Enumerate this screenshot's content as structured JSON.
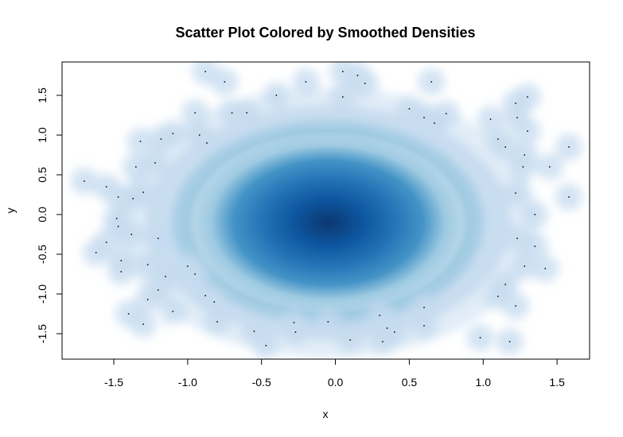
{
  "chart_data": {
    "type": "scatter",
    "title": "Scatter Plot Colored by Smoothed Densities",
    "xlabel": "x",
    "ylabel": "y",
    "xlim": [
      -1.85,
      1.72
    ],
    "ylim": [
      -1.82,
      1.92
    ],
    "x_ticks": [
      -1.5,
      -1.0,
      -0.5,
      0.0,
      0.5,
      1.0,
      1.5
    ],
    "x_tick_labels": [
      "-1.5",
      "-1.0",
      "-0.5",
      "0.0",
      "0.5",
      "1.0",
      "1.5"
    ],
    "y_ticks": [
      -1.5,
      -1.0,
      -0.5,
      0.0,
      0.5,
      1.0,
      1.5
    ],
    "y_tick_labels": [
      "-1.5",
      "-1.0",
      "-0.5",
      "0.0",
      "0.5",
      "1.0",
      "1.5"
    ],
    "color_scale": [
      "#ffffff",
      "#c6dbef",
      "#6baed6",
      "#2171b5",
      "#08306b"
    ],
    "density_center": [
      -0.05,
      -0.1
    ],
    "outlier_points": [
      {
        "x": -0.88,
        "y": 1.8
      },
      {
        "x": -0.75,
        "y": 1.67
      },
      {
        "x": -0.2,
        "y": 1.67
      },
      {
        "x": 0.05,
        "y": 1.8
      },
      {
        "x": 0.15,
        "y": 1.75
      },
      {
        "x": 0.2,
        "y": 1.65
      },
      {
        "x": 0.65,
        "y": 1.67
      },
      {
        "x": -0.4,
        "y": 1.5
      },
      {
        "x": 0.05,
        "y": 1.48
      },
      {
        "x": -0.95,
        "y": 1.28
      },
      {
        "x": -0.7,
        "y": 1.28
      },
      {
        "x": -0.6,
        "y": 1.28
      },
      {
        "x": 0.5,
        "y": 1.33
      },
      {
        "x": 0.6,
        "y": 1.22
      },
      {
        "x": 0.67,
        "y": 1.15
      },
      {
        "x": 0.75,
        "y": 1.27
      },
      {
        "x": 1.22,
        "y": 1.4
      },
      {
        "x": 1.3,
        "y": 1.48
      },
      {
        "x": 1.23,
        "y": 1.22
      },
      {
        "x": 1.05,
        "y": 1.2
      },
      {
        "x": 1.3,
        "y": 1.05
      },
      {
        "x": 1.1,
        "y": 0.95
      },
      {
        "x": 1.15,
        "y": 0.85
      },
      {
        "x": 1.28,
        "y": 0.75
      },
      {
        "x": 1.27,
        "y": 0.6
      },
      {
        "x": 1.45,
        "y": 0.6
      },
      {
        "x": 1.58,
        "y": 0.85
      },
      {
        "x": 1.58,
        "y": 0.22
      },
      {
        "x": 1.35,
        "y": 0.0
      },
      {
        "x": 1.22,
        "y": 0.27
      },
      {
        "x": 1.23,
        "y": -0.3
      },
      {
        "x": 1.35,
        "y": -0.4
      },
      {
        "x": 1.42,
        "y": -0.68
      },
      {
        "x": 1.28,
        "y": -0.65
      },
      {
        "x": 1.15,
        "y": -0.88
      },
      {
        "x": 1.22,
        "y": -1.15
      },
      {
        "x": 1.1,
        "y": -1.03
      },
      {
        "x": 0.6,
        "y": -1.17
      },
      {
        "x": 0.3,
        "y": -1.27
      },
      {
        "x": 0.35,
        "y": -1.43
      },
      {
        "x": 0.4,
        "y": -1.48
      },
      {
        "x": 0.6,
        "y": -1.4
      },
      {
        "x": 0.98,
        "y": -1.55
      },
      {
        "x": 1.18,
        "y": -1.6
      },
      {
        "x": 0.32,
        "y": -1.6
      },
      {
        "x": 0.1,
        "y": -1.58
      },
      {
        "x": -0.05,
        "y": -1.35
      },
      {
        "x": -0.28,
        "y": -1.36
      },
      {
        "x": -0.27,
        "y": -1.48
      },
      {
        "x": -0.47,
        "y": -1.65
      },
      {
        "x": -0.55,
        "y": -1.47
      },
      {
        "x": -0.8,
        "y": -1.35
      },
      {
        "x": -1.1,
        "y": -1.22
      },
      {
        "x": -1.3,
        "y": -1.38
      },
      {
        "x": -1.4,
        "y": -1.25
      },
      {
        "x": -1.27,
        "y": -1.07
      },
      {
        "x": -1.2,
        "y": -0.95
      },
      {
        "x": -0.88,
        "y": -1.02
      },
      {
        "x": -0.82,
        "y": -1.1
      },
      {
        "x": -0.95,
        "y": -0.75
      },
      {
        "x": -1.0,
        "y": -0.65
      },
      {
        "x": -1.15,
        "y": -0.78
      },
      {
        "x": -1.27,
        "y": -0.63
      },
      {
        "x": -1.45,
        "y": -0.72
      },
      {
        "x": -1.45,
        "y": -0.58
      },
      {
        "x": -1.55,
        "y": -0.35
      },
      {
        "x": -1.62,
        "y": -0.48
      },
      {
        "x": -1.47,
        "y": -0.15
      },
      {
        "x": -1.48,
        "y": -0.05
      },
      {
        "x": -1.38,
        "y": -0.25
      },
      {
        "x": -1.2,
        "y": -0.3
      },
      {
        "x": -1.37,
        "y": 0.2
      },
      {
        "x": -1.47,
        "y": 0.22
      },
      {
        "x": -1.55,
        "y": 0.35
      },
      {
        "x": -1.7,
        "y": 0.42
      },
      {
        "x": -1.35,
        "y": 0.6
      },
      {
        "x": -1.22,
        "y": 0.65
      },
      {
        "x": -1.3,
        "y": 0.28
      },
      {
        "x": -1.32,
        "y": 0.92
      },
      {
        "x": -1.18,
        "y": 0.95
      },
      {
        "x": -1.1,
        "y": 1.02
      },
      {
        "x": -0.92,
        "y": 1.0
      },
      {
        "x": -0.87,
        "y": 0.9
      }
    ]
  }
}
